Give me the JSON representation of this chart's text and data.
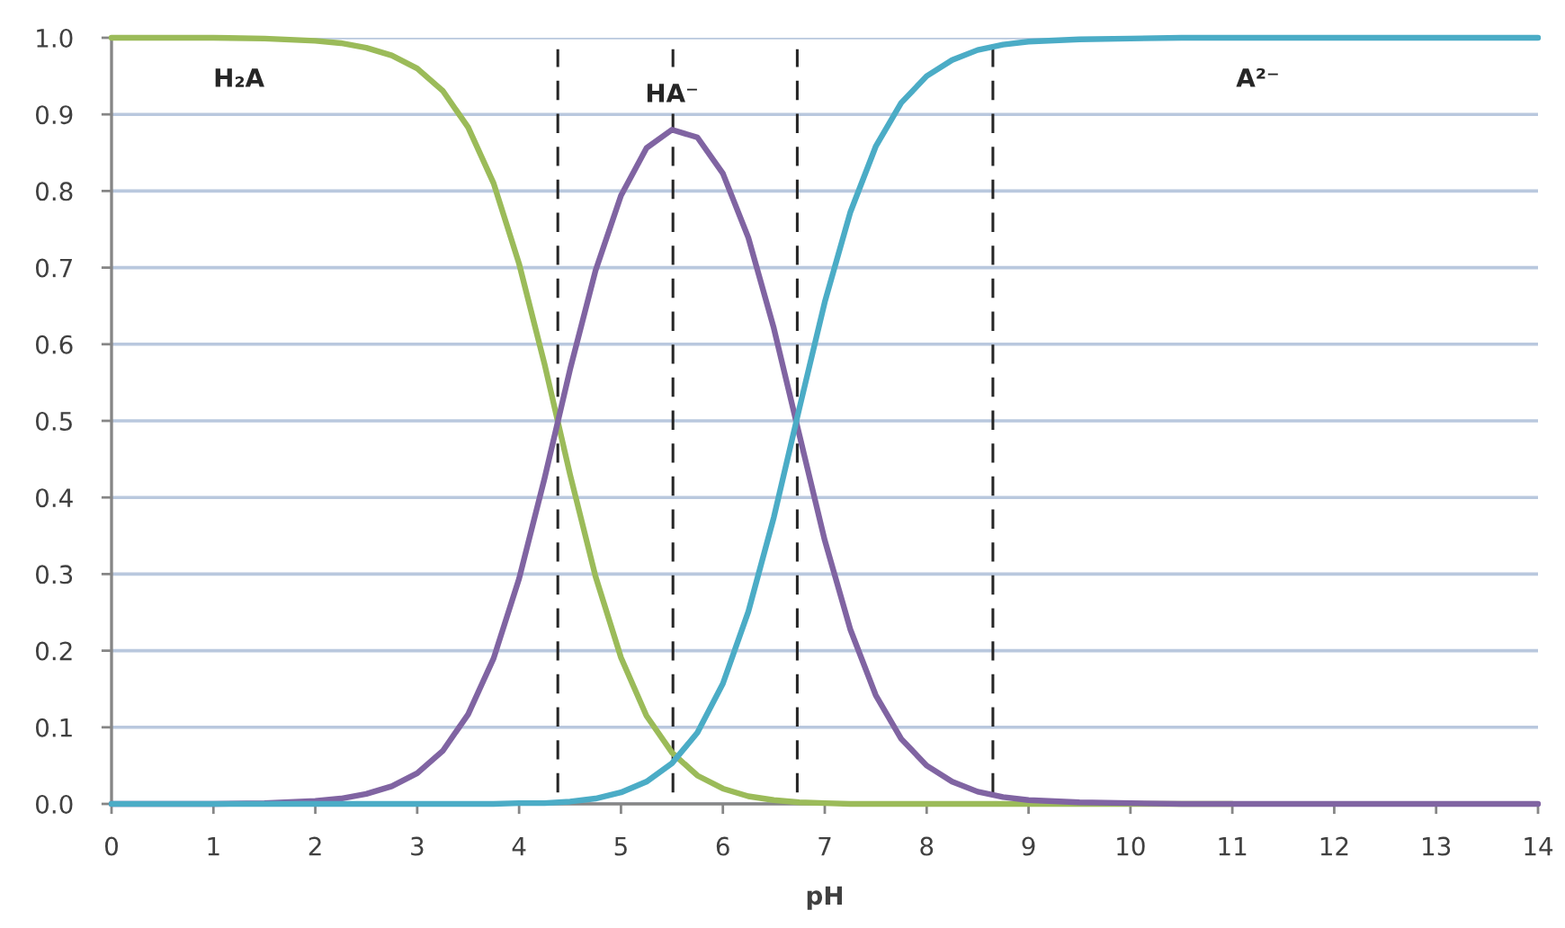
{
  "chart_data": {
    "type": "line",
    "xlabel": "pH",
    "x": [
      0,
      0.5,
      1,
      1.5,
      2,
      2.25,
      2.5,
      2.75,
      3,
      3.25,
      3.5,
      3.75,
      4,
      4.25,
      4.5,
      4.75,
      5,
      5.25,
      5.5,
      5.75,
      6,
      6.25,
      6.5,
      6.75,
      7,
      7.25,
      7.5,
      7.75,
      8,
      8.25,
      8.5,
      8.75,
      9,
      9.5,
      10,
      10.5,
      11,
      12,
      13,
      14
    ],
    "series": [
      {
        "name": "H₂A",
        "color": "#9bbb59",
        "values": [
          1,
          1,
          1,
          0.999,
          0.996,
          0.993,
          0.987,
          0.977,
          0.96,
          0.931,
          0.883,
          0.81,
          0.705,
          0.574,
          0.43,
          0.297,
          0.191,
          0.115,
          0.067,
          0.037,
          0.02,
          0.01,
          0.005,
          0.002,
          0.001,
          0,
          0,
          0,
          0,
          0,
          0,
          0,
          0,
          0,
          0,
          0,
          0,
          null,
          null,
          null
        ]
      },
      {
        "name": "HA⁻",
        "color": "#8064a2",
        "values": [
          0,
          0,
          0,
          0.001,
          0.004,
          0.007,
          0.013,
          0.023,
          0.04,
          0.069,
          0.117,
          0.19,
          0.294,
          0.425,
          0.567,
          0.696,
          0.794,
          0.856,
          0.88,
          0.87,
          0.823,
          0.739,
          0.621,
          0.482,
          0.344,
          0.228,
          0.142,
          0.085,
          0.05,
          0.029,
          0.016,
          0.009,
          0.005,
          0.002,
          0.001,
          0,
          0,
          0,
          0,
          0
        ]
      },
      {
        "name": "A²⁻",
        "color": "#4bacc6",
        "values": [
          0,
          0,
          0,
          0,
          0,
          0,
          0,
          0,
          0,
          0,
          0,
          0,
          0.001,
          0.001,
          0.003,
          0.007,
          0.015,
          0.029,
          0.053,
          0.093,
          0.157,
          0.251,
          0.374,
          0.516,
          0.655,
          0.772,
          0.858,
          0.915,
          0.95,
          0.971,
          0.984,
          0.991,
          0.995,
          0.998,
          0.999,
          1,
          1,
          1,
          1,
          1
        ]
      }
    ],
    "xlim": [
      0,
      14
    ],
    "xticks": [
      0,
      1,
      2,
      3,
      4,
      5,
      6,
      7,
      8,
      9,
      10,
      11,
      12,
      13,
      14
    ],
    "ylim": [
      0,
      1
    ],
    "yticks": [
      {
        "value": 0,
        "label": "0.0"
      },
      0.1,
      0.2,
      0.3,
      0.4,
      0.5,
      0.6,
      0.7,
      0.8,
      0.9,
      {
        "value": 1,
        "label": "1.0"
      }
    ],
    "grid": "y",
    "ref_lines": [
      {
        "axis": "x",
        "value": 4.38,
        "color": "#262626",
        "line_style": "dashed"
      },
      {
        "axis": "x",
        "value": 5.51,
        "color": "#262626",
        "line_style": "dashed"
      },
      {
        "axis": "x",
        "value": 6.73,
        "color": "#262626",
        "line_style": "dashed"
      },
      {
        "axis": "x",
        "value": 8.65,
        "color": "#262626",
        "line_style": "dashed"
      }
    ]
  }
}
